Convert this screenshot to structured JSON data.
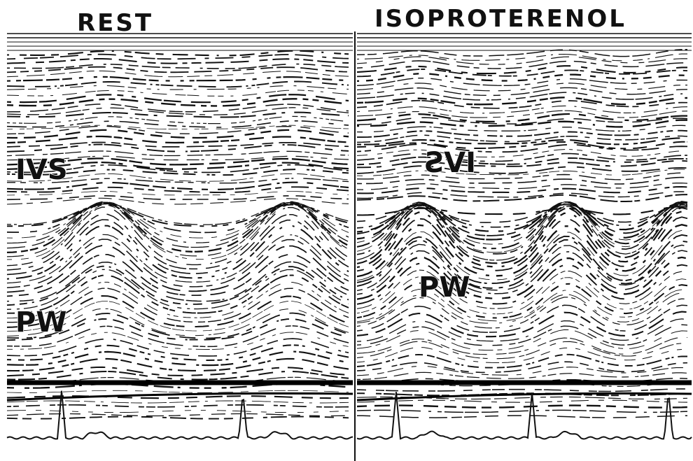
{
  "panels": [
    {
      "title": "REST",
      "labels": [
        "IVS",
        "PW"
      ]
    },
    {
      "title": "ISOPROTERENOL",
      "labels": [
        "IVS",
        "PW"
      ]
    }
  ]
}
